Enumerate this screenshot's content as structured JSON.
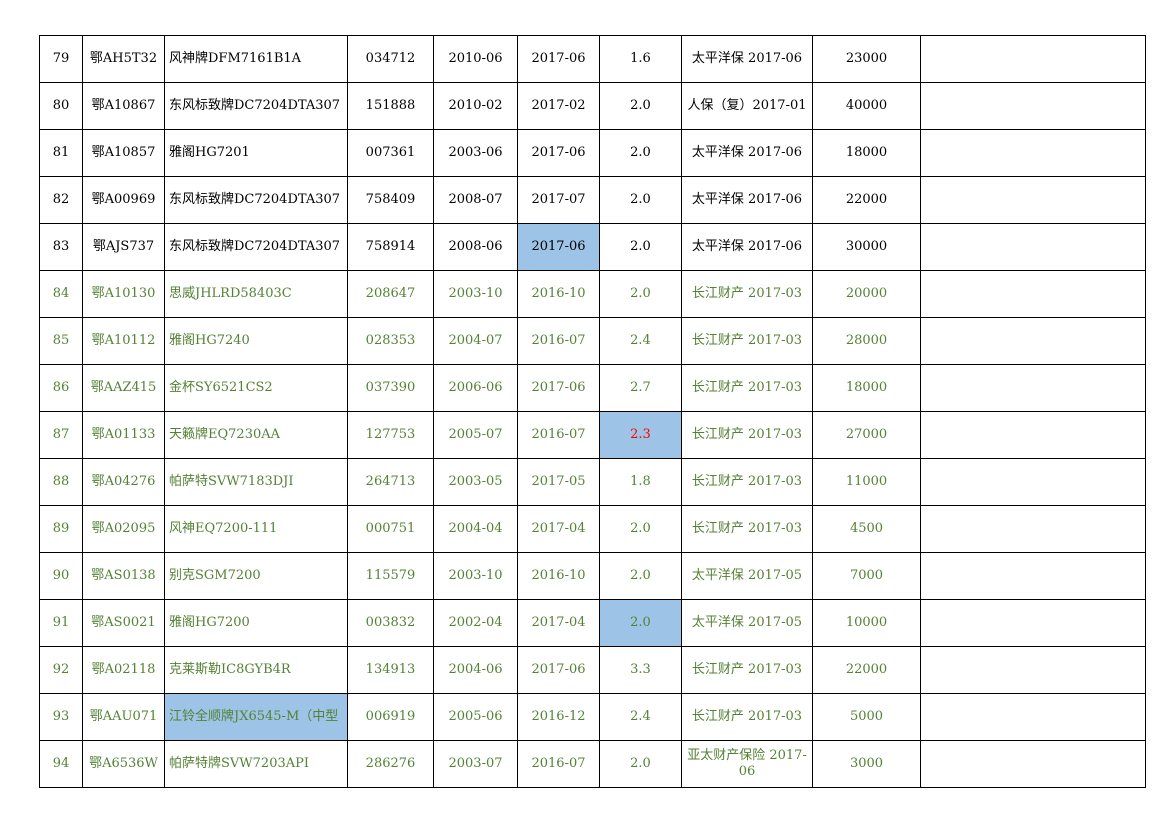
{
  "colors": {
    "highlight": "#9dc3e6",
    "green_text": "#548235",
    "red_text": "#ff0000",
    "grid": "#000000"
  },
  "rows": [
    {
      "no": "79",
      "plate": "鄂AH5T32",
      "model": "风神牌DFM7161B1A",
      "code": "034712",
      "reg": "2010-06",
      "inspect": "2017-06",
      "disp": "1.6",
      "insure": "太平洋保 2017-06",
      "price": "23000",
      "note": "",
      "style": "black",
      "hl": []
    },
    {
      "no": "80",
      "plate": "鄂A10867",
      "model": "东风标致牌DC7204DTA307",
      "code": "151888",
      "reg": "2010-02",
      "inspect": "2017-02",
      "disp": "2.0",
      "insure": "人保（复）2017-01",
      "price": "40000",
      "note": "",
      "style": "black",
      "hl": []
    },
    {
      "no": "81",
      "plate": "鄂A10857",
      "model": "雅阁HG7201",
      "code": "007361",
      "reg": "2003-06",
      "inspect": "2017-06",
      "disp": "2.0",
      "insure": "太平洋保 2017-06",
      "price": "18000",
      "note": "",
      "style": "black",
      "hl": []
    },
    {
      "no": "82",
      "plate": "鄂A00969",
      "model": "东风标致牌DC7204DTA307",
      "code": "758409",
      "reg": "2008-07",
      "inspect": "2017-07",
      "disp": "2.0",
      "insure": "太平洋保 2017-06",
      "price": "22000",
      "note": "",
      "style": "black",
      "hl": []
    },
    {
      "no": "83",
      "plate": "鄂AJS737",
      "model": "东风标致牌DC7204DTA307",
      "code": "758914",
      "reg": "2008-06",
      "inspect": "2017-06",
      "disp": "2.0",
      "insure": "太平洋保 2017-06",
      "price": "30000",
      "note": "",
      "style": "black",
      "hl": [
        "inspect"
      ]
    },
    {
      "no": "84",
      "plate": "鄂A10130",
      "model": "思威JHLRD58403C",
      "code": "208647",
      "reg": "2003-10",
      "inspect": "2016-10",
      "disp": "2.0",
      "insure": "长江财产 2017-03",
      "price": "20000",
      "note": "",
      "style": "green",
      "hl": []
    },
    {
      "no": "85",
      "plate": "鄂A10112",
      "model": "雅阁HG7240",
      "code": "028353",
      "reg": "2004-07",
      "inspect": "2016-07",
      "disp": "2.4",
      "insure": "长江财产 2017-03",
      "price": "28000",
      "note": "",
      "style": "green",
      "hl": []
    },
    {
      "no": "86",
      "plate": "鄂AAZ415",
      "model": "金杯SY6521CS2",
      "code": "037390",
      "reg": "2006-06",
      "inspect": "2017-06",
      "disp": "2.7",
      "insure": "长江财产 2017-03",
      "price": "18000",
      "note": "",
      "style": "green",
      "hl": []
    },
    {
      "no": "87",
      "plate": "鄂A01133",
      "model": "天籁牌EQ7230AA",
      "code": "127753",
      "reg": "2005-07",
      "inspect": "2016-07",
      "disp": "2.3",
      "insure": "长江财产 2017-03",
      "price": "27000",
      "note": "",
      "style": "green",
      "hl": [
        "disp"
      ],
      "red": [
        "disp"
      ]
    },
    {
      "no": "88",
      "plate": "鄂A04276",
      "model": "帕萨特SVW7183DJI",
      "code": "264713",
      "reg": "2003-05",
      "inspect": "2017-05",
      "disp": "1.8",
      "insure": "长江财产 2017-03",
      "price": "11000",
      "note": "",
      "style": "green",
      "hl": []
    },
    {
      "no": "89",
      "plate": "鄂A02095",
      "model": "风神EQ7200-111",
      "code": "000751",
      "reg": "2004-04",
      "inspect": "2017-04",
      "disp": "2.0",
      "insure": "长江财产 2017-03",
      "price": "4500",
      "note": "",
      "style": "green",
      "hl": []
    },
    {
      "no": "90",
      "plate": "鄂AS0138",
      "model": "别克SGM7200",
      "code": "115579",
      "reg": "2003-10",
      "inspect": "2016-10",
      "disp": "2.0",
      "insure": "太平洋保 2017-05",
      "price": "7000",
      "note": "",
      "style": "green",
      "hl": []
    },
    {
      "no": "91",
      "plate": "鄂AS0021",
      "model": "雅阁HG7200",
      "code": "003832",
      "reg": "2002-04",
      "inspect": "2017-04",
      "disp": "2.0",
      "insure": "太平洋保 2017-05",
      "price": "10000",
      "note": "",
      "style": "green",
      "hl": [
        "disp"
      ]
    },
    {
      "no": "92",
      "plate": "鄂A02118",
      "model": "克莱斯勒IC8GYB4R",
      "code": "134913",
      "reg": "2004-06",
      "inspect": "2017-06",
      "disp": "3.3",
      "insure": "长江财产 2017-03",
      "price": "22000",
      "note": "",
      "style": "green",
      "hl": []
    },
    {
      "no": "93",
      "plate": "鄂AAU071",
      "model": "江铃全顺牌JX6545-M（中型",
      "code": "006919",
      "reg": "2005-06",
      "inspect": "2016-12",
      "disp": "2.4",
      "insure": "长江财产 2017-03",
      "price": "5000",
      "note": "",
      "style": "green",
      "hl": [
        "model"
      ]
    },
    {
      "no": "94",
      "plate": "鄂A6536W",
      "model": "帕萨特牌SVW7203API",
      "code": "286276",
      "reg": "2003-07",
      "inspect": "2016-07",
      "disp": "2.0",
      "insure": "亚太财产保险 2017-06",
      "price": "3000",
      "note": "",
      "style": "green",
      "hl": []
    }
  ]
}
